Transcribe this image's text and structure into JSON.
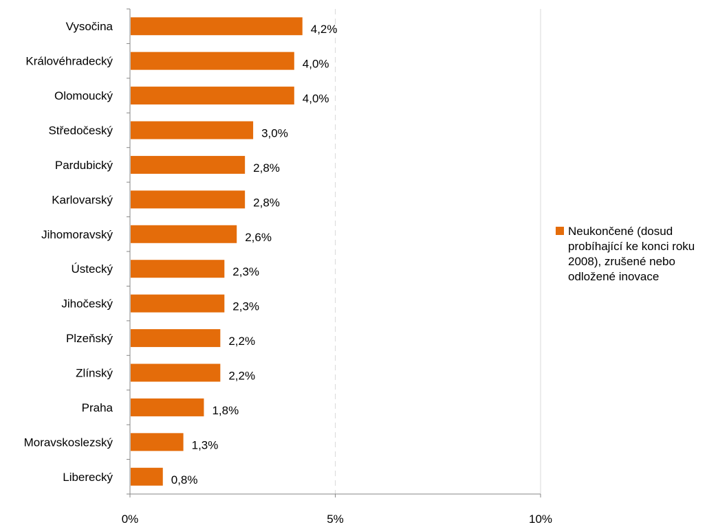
{
  "chart_data": {
    "type": "bar",
    "orientation": "horizontal",
    "categories": [
      "Vysočina",
      "Královéhradecký",
      "Olomoucký",
      "Středočeský",
      "Pardubický",
      "Karlovarský",
      "Jihomoravský",
      "Ústecký",
      "Jihočeský",
      "Plzeňský",
      "Zlínský",
      "Praha",
      "Moravskoslezský",
      "Liberecký"
    ],
    "series": [
      {
        "name": "Neukončené (dosud probíhající ke konci roku 2008), zrušené nebo odložené inovace",
        "values": [
          4.2,
          4.0,
          4.0,
          3.0,
          2.8,
          2.8,
          2.6,
          2.3,
          2.3,
          2.2,
          2.2,
          1.8,
          1.3,
          0.8
        ],
        "labels": [
          "4,2%",
          "4,0%",
          "4,0%",
          "3,0%",
          "2,8%",
          "2,8%",
          "2,6%",
          "2,3%",
          "2,3%",
          "2,2%",
          "2,2%",
          "1,8%",
          "1,3%",
          "0,8%"
        ],
        "color": "#E46C0A"
      }
    ],
    "x_ticks": [
      "0%",
      "5%",
      "10%"
    ],
    "xlim": [
      0,
      10
    ],
    "grid": true,
    "legend_position": "right",
    "gridline_color": "#D9D9D9",
    "axis_color": "#868686"
  }
}
